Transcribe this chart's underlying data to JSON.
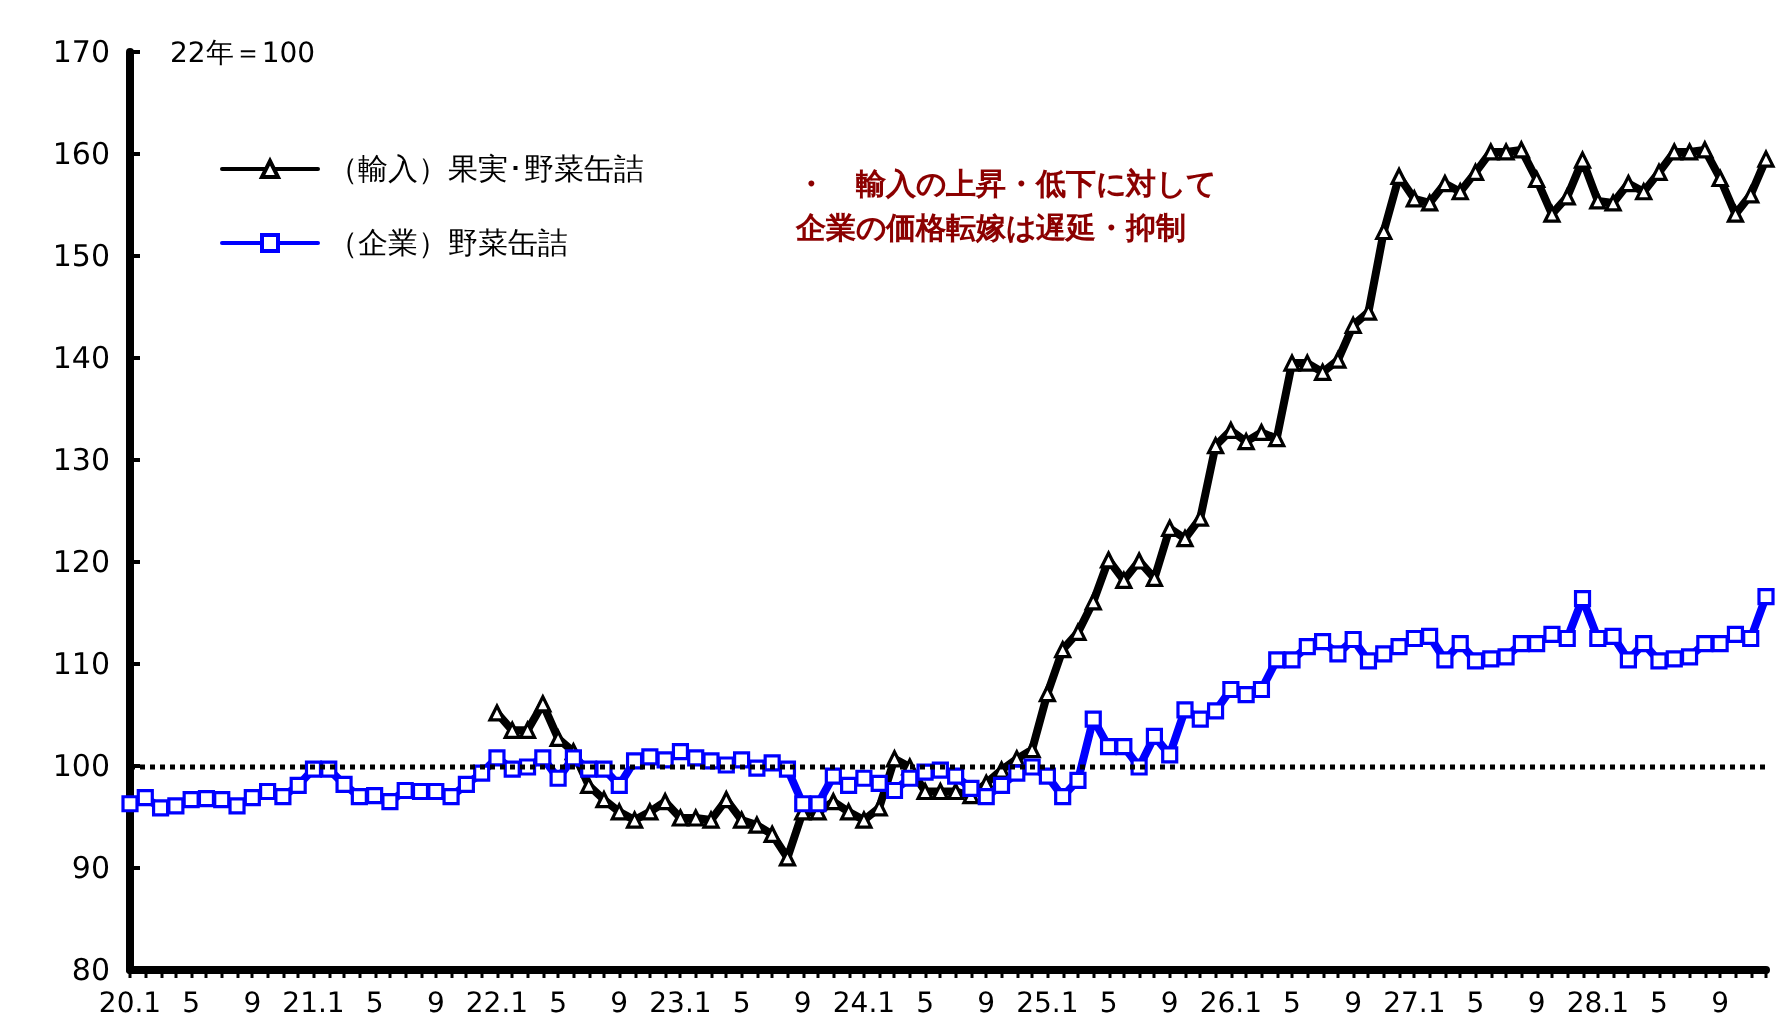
{
  "chart_data": {
    "type": "line",
    "ylabel": "22年＝100",
    "legend": "top left",
    "grid": false,
    "line_style": "solid",
    "annotations": [
      "・　輸入の上昇・低下に対して",
      "企業の価格転嫁は遅延・抑制"
    ],
    "ylim": [
      80,
      170
    ],
    "yticks": [
      80,
      90,
      100,
      110,
      120,
      130,
      140,
      150,
      160,
      170
    ],
    "ref_lines": [
      {
        "axis": "y",
        "value": 100,
        "label": null,
        "color": "#000000",
        "line_style": "dotted"
      }
    ],
    "categories": [
      "20.1",
      null,
      null,
      null,
      "5",
      null,
      null,
      null,
      "9",
      null,
      null,
      null,
      "21.1",
      null,
      null,
      null,
      "5",
      null,
      null,
      null,
      "9",
      null,
      null,
      null,
      "22.1",
      null,
      null,
      null,
      "5",
      null,
      null,
      null,
      "9",
      null,
      null,
      null,
      "23.1",
      null,
      null,
      null,
      "5",
      null,
      null,
      null,
      "9",
      null,
      null,
      null,
      "24.1",
      null,
      null,
      null,
      "5",
      null,
      null,
      null,
      "9",
      null,
      null,
      null,
      "25.1",
      null,
      null,
      null,
      "5",
      null,
      null,
      null,
      "9",
      null,
      null,
      null,
      "26.1",
      null,
      null,
      null,
      "5",
      null,
      null,
      null,
      "9",
      null,
      null,
      null,
      "27.1",
      null,
      null,
      null,
      "5",
      null,
      null,
      null,
      "9",
      null,
      null,
      null,
      "28.1",
      null,
      null,
      null,
      "5",
      null,
      null,
      null,
      "9",
      null,
      null,
      null
    ],
    "series": [
      {
        "name": "（輸入）果実･野菜缶詰",
        "color": "#000000",
        "marker": "triangle",
        "values": [
          null,
          null,
          null,
          null,
          null,
          null,
          null,
          null,
          null,
          null,
          null,
          null,
          null,
          null,
          null,
          null,
          null,
          null,
          null,
          null,
          null,
          null,
          null,
          null,
          105.2,
          103.5,
          103.5,
          106.1,
          102.7,
          101.4,
          98.1,
          96.7,
          95.5,
          94.7,
          95.5,
          96.5,
          94.9,
          94.9,
          94.7,
          96.7,
          94.7,
          94.2,
          93.3,
          91.0,
          95.5,
          95.5,
          96.5,
          95.5,
          94.7,
          95.9,
          100.7,
          99.9,
          97.5,
          97.5,
          97.5,
          97.1,
          98.3,
          99.6,
          100.7,
          101.6,
          107.1,
          111.4,
          113.1,
          116.1,
          120.2,
          118.2,
          120.1,
          118.4,
          123.3,
          122.3,
          124.3,
          131.4,
          132.9,
          131.8,
          132.7,
          132.1,
          139.5,
          139.5,
          138.6,
          139.8,
          143.2,
          144.5,
          152.4,
          157.8,
          155.6,
          155.2,
          157.1,
          156.3,
          158.2,
          160.2,
          160.2,
          160.4,
          157.5,
          154.1,
          155.8,
          159.4,
          155.4,
          155.2,
          157.1,
          156.3,
          158.2,
          160.2,
          160.2,
          160.4,
          157.6,
          154.1,
          156.0,
          159.5
        ]
      },
      {
        "name": "（企業）野菜缶詰",
        "color": "#0000ff",
        "marker": "square",
        "values": [
          96.3,
          96.9,
          95.9,
          96.1,
          96.7,
          96.8,
          96.7,
          96.1,
          96.9,
          97.5,
          97.0,
          98.1,
          99.7,
          99.7,
          98.2,
          97.0,
          97.1,
          96.5,
          97.6,
          97.5,
          97.5,
          97.0,
          98.2,
          99.3,
          100.8,
          99.7,
          99.9,
          100.8,
          98.8,
          100.8,
          99.7,
          99.7,
          98.1,
          100.5,
          100.9,
          100.6,
          101.4,
          100.8,
          100.5,
          100.1,
          100.6,
          99.8,
          100.3,
          99.7,
          96.3,
          96.3,
          99.0,
          98.1,
          98.8,
          98.3,
          97.6,
          98.8,
          99.4,
          99.6,
          99.0,
          97.8,
          97.0,
          98.1,
          99.3,
          99.9,
          99.0,
          97.0,
          98.6,
          104.6,
          101.9,
          101.9,
          99.9,
          102.9,
          101.1,
          105.5,
          104.6,
          105.4,
          107.5,
          107.0,
          107.5,
          110.4,
          110.4,
          111.7,
          112.2,
          111.0,
          112.4,
          110.3,
          111.0,
          111.7,
          112.5,
          112.7,
          110.4,
          112.0,
          110.3,
          110.5,
          110.7,
          112.0,
          112.0,
          112.9,
          112.5,
          116.4,
          112.5,
          112.7,
          110.4,
          112.0,
          110.3,
          110.5,
          110.7,
          112.0,
          112.0,
          112.9,
          112.5,
          116.6
        ]
      }
    ]
  }
}
